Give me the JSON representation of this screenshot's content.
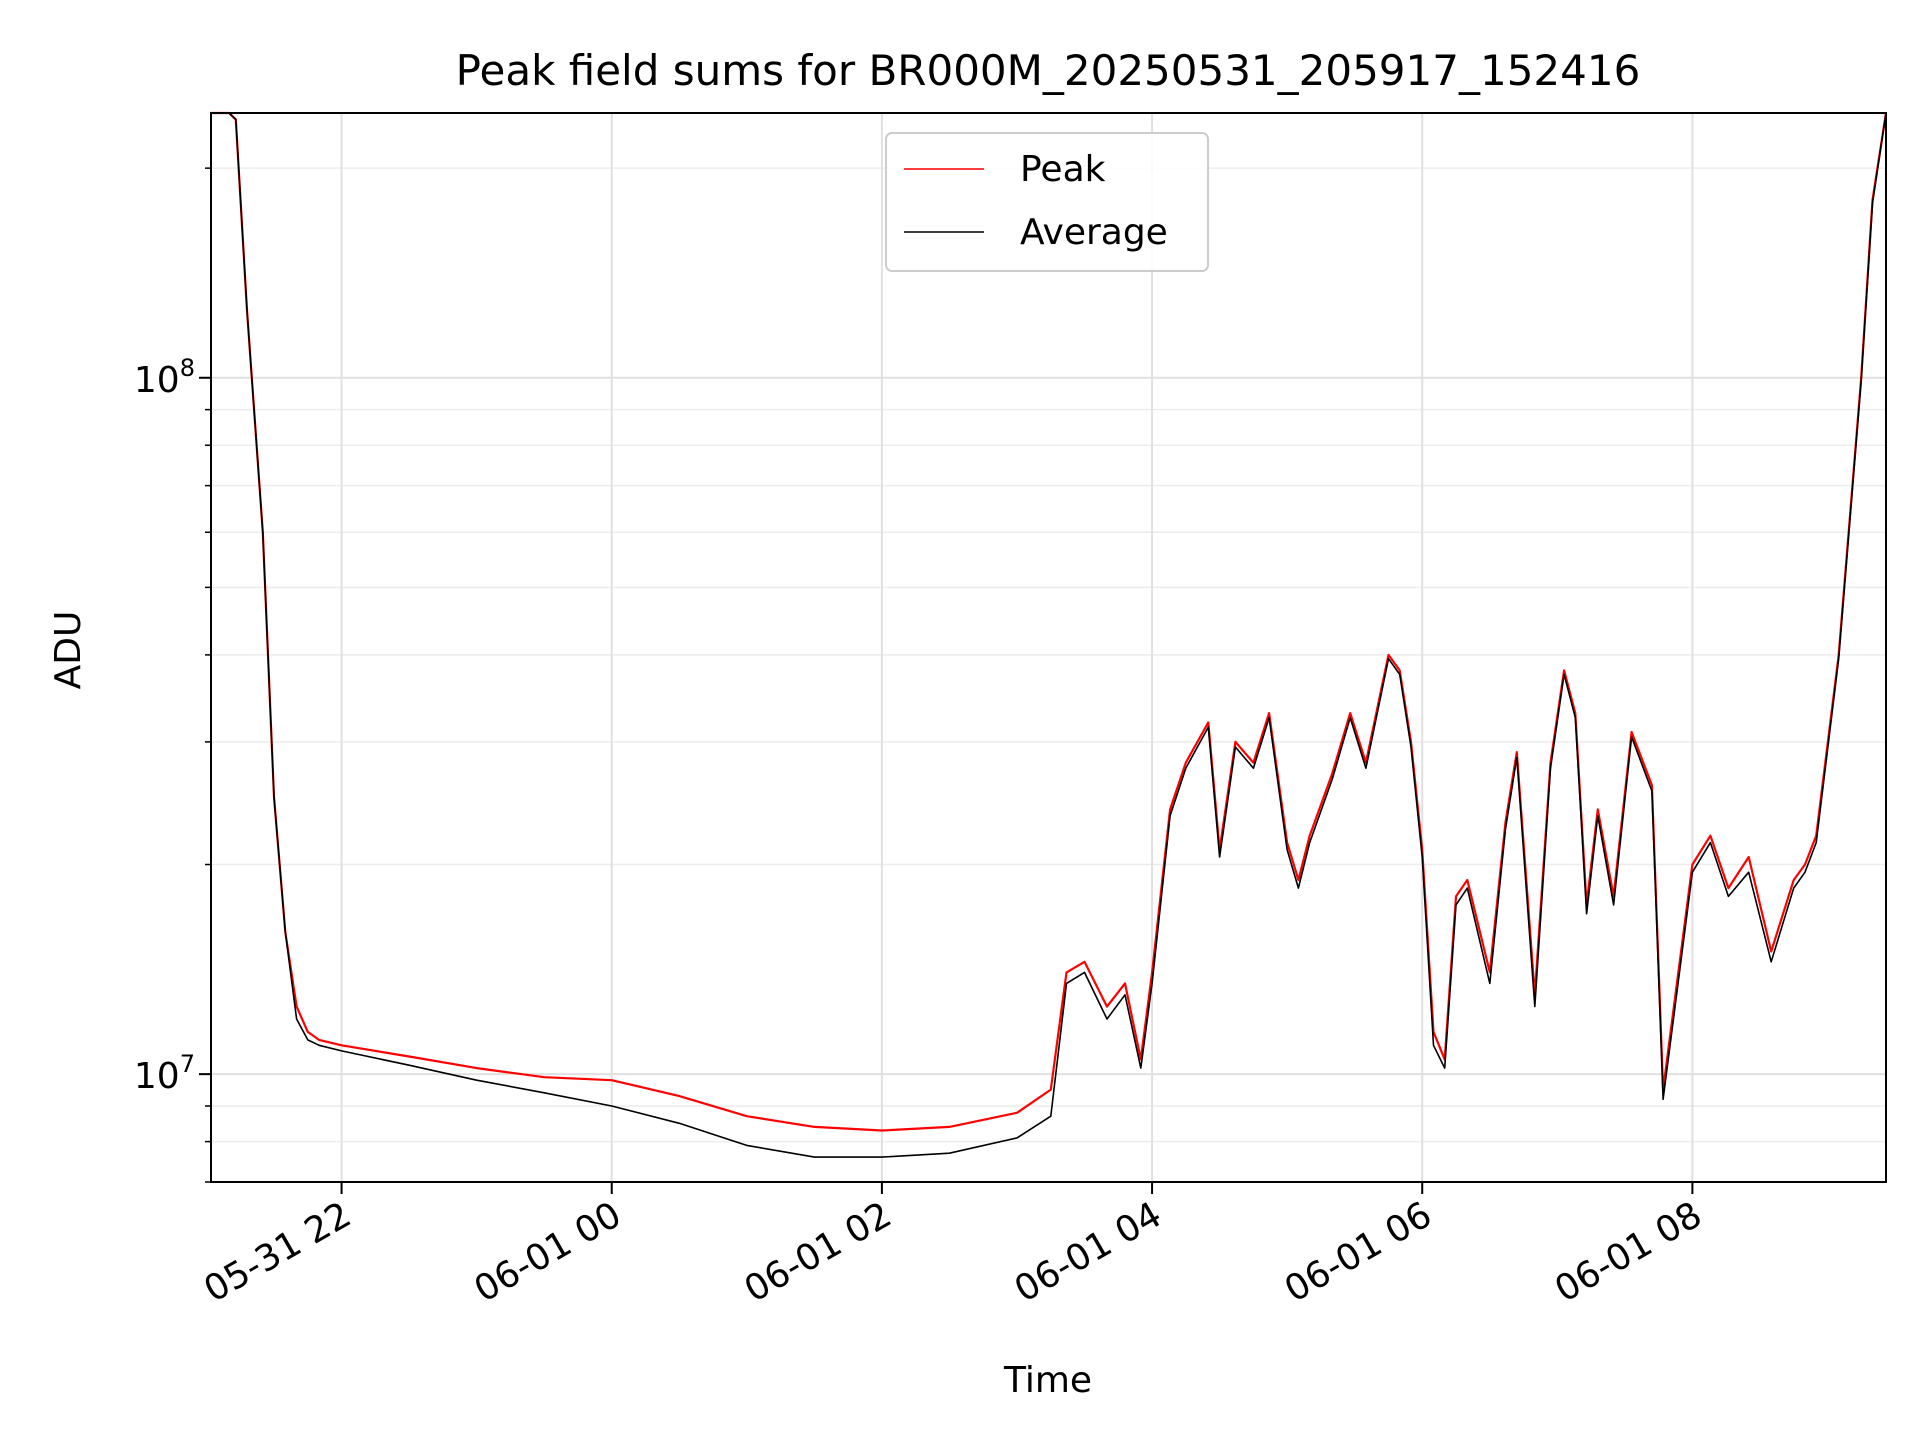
{
  "chart_data": {
    "type": "line",
    "title": "Peak field sums for BR000M_20250531_205917_152416",
    "xlabel": "Time",
    "ylabel": "ADU",
    "y_scale": "log",
    "ylim": [
      7000000,
      240000000
    ],
    "xlim": [
      "2025-05-31 21:02",
      "2025-06-01 09:26"
    ],
    "x_ticks": [
      {
        "value": "2025-05-31 22:00",
        "label": "05-31 22"
      },
      {
        "value": "2025-06-01 00:00",
        "label": "06-01 00"
      },
      {
        "value": "2025-06-01 02:00",
        "label": "06-01 02"
      },
      {
        "value": "2025-06-01 04:00",
        "label": "06-01 04"
      },
      {
        "value": "2025-06-01 06:00",
        "label": "06-01 06"
      },
      {
        "value": "2025-06-01 08:00",
        "label": "06-01 08"
      }
    ],
    "y_ticks": [
      {
        "value": 10000000,
        "base": "10",
        "exp": "7"
      },
      {
        "value": 100000000,
        "base": "10",
        "exp": "8"
      }
    ],
    "grid": true,
    "legend_position": "top-center",
    "series": [
      {
        "name": "Peak",
        "color": "#ff0000",
        "x": [
          "2025-05-31 21:02",
          "2025-05-31 21:10",
          "2025-05-31 21:13",
          "2025-05-31 21:18",
          "2025-05-31 21:25",
          "2025-05-31 21:30",
          "2025-05-31 21:35",
          "2025-05-31 21:40",
          "2025-05-31 21:45",
          "2025-05-31 21:50",
          "2025-05-31 22:00",
          "2025-05-31 22:30",
          "2025-05-31 23:00",
          "2025-05-31 23:30",
          "2025-06-01 00:00",
          "2025-06-01 00:30",
          "2025-06-01 01:00",
          "2025-06-01 01:30",
          "2025-06-01 02:00",
          "2025-06-01 02:30",
          "2025-06-01 03:00",
          "2025-06-01 03:15",
          "2025-06-01 03:22",
          "2025-06-01 03:30",
          "2025-06-01 03:40",
          "2025-06-01 03:48",
          "2025-06-01 03:55",
          "2025-06-01 04:00",
          "2025-06-01 04:08",
          "2025-06-01 04:15",
          "2025-06-01 04:25",
          "2025-06-01 04:30",
          "2025-06-01 04:37",
          "2025-06-01 04:45",
          "2025-06-01 04:52",
          "2025-06-01 05:00",
          "2025-06-01 05:05",
          "2025-06-01 05:10",
          "2025-06-01 05:20",
          "2025-06-01 05:28",
          "2025-06-01 05:35",
          "2025-06-01 05:45",
          "2025-06-01 05:50",
          "2025-06-01 05:55",
          "2025-06-01 06:00",
          "2025-06-01 06:05",
          "2025-06-01 06:10",
          "2025-06-01 06:15",
          "2025-06-01 06:20",
          "2025-06-01 06:30",
          "2025-06-01 06:37",
          "2025-06-01 06:42",
          "2025-06-01 06:50",
          "2025-06-01 06:57",
          "2025-06-01 07:03",
          "2025-06-01 07:08",
          "2025-06-01 07:13",
          "2025-06-01 07:18",
          "2025-06-01 07:25",
          "2025-06-01 07:33",
          "2025-06-01 07:42",
          "2025-06-01 07:47",
          "2025-06-01 08:00",
          "2025-06-01 08:08",
          "2025-06-01 08:16",
          "2025-06-01 08:25",
          "2025-06-01 08:35",
          "2025-06-01 08:45",
          "2025-06-01 08:50",
          "2025-06-01 08:55",
          "2025-06-01 09:05",
          "2025-06-01 09:15",
          "2025-06-01 09:20",
          "2025-06-01 09:26"
        ],
        "y": [
          240000000,
          240000000,
          235000000,
          125000000,
          60000000,
          25000000,
          16000000,
          12500000,
          11500000,
          11200000,
          11000000,
          10600000,
          10200000,
          9900000,
          9800000,
          9300000,
          8700000,
          8400000,
          8300000,
          8400000,
          8800000,
          9500000,
          14000000,
          14500000,
          12500000,
          13500000,
          10500000,
          14000000,
          24000000,
          28000000,
          32000000,
          21000000,
          30000000,
          28000000,
          33000000,
          21500000,
          19000000,
          22000000,
          27000000,
          33000000,
          28000000,
          40000000,
          38000000,
          30000000,
          21000000,
          11500000,
          10500000,
          18000000,
          19000000,
          14000000,
          23000000,
          29000000,
          13000000,
          28000000,
          38000000,
          33000000,
          17500000,
          24000000,
          18000000,
          31000000,
          26000000,
          9500000,
          20000000,
          22000000,
          18500000,
          20500000,
          15000000,
          19000000,
          20000000,
          22000000,
          40000000,
          100000000,
          180000000,
          240000000
        ]
      },
      {
        "name": "Average",
        "color": "#000000",
        "x": [
          "2025-05-31 21:02",
          "2025-05-31 21:10",
          "2025-05-31 21:13",
          "2025-05-31 21:18",
          "2025-05-31 21:25",
          "2025-05-31 21:30",
          "2025-05-31 21:35",
          "2025-05-31 21:40",
          "2025-05-31 21:45",
          "2025-05-31 21:50",
          "2025-05-31 22:00",
          "2025-05-31 22:30",
          "2025-05-31 23:00",
          "2025-05-31 23:30",
          "2025-06-01 00:00",
          "2025-06-01 00:30",
          "2025-06-01 01:00",
          "2025-06-01 01:30",
          "2025-06-01 02:00",
          "2025-06-01 02:30",
          "2025-06-01 03:00",
          "2025-06-01 03:15",
          "2025-06-01 03:22",
          "2025-06-01 03:30",
          "2025-06-01 03:40",
          "2025-06-01 03:48",
          "2025-06-01 03:55",
          "2025-06-01 04:00",
          "2025-06-01 04:08",
          "2025-06-01 04:15",
          "2025-06-01 04:25",
          "2025-06-01 04:30",
          "2025-06-01 04:37",
          "2025-06-01 04:45",
          "2025-06-01 04:52",
          "2025-06-01 05:00",
          "2025-06-01 05:05",
          "2025-06-01 05:10",
          "2025-06-01 05:20",
          "2025-06-01 05:28",
          "2025-06-01 05:35",
          "2025-06-01 05:45",
          "2025-06-01 05:50",
          "2025-06-01 05:55",
          "2025-06-01 06:00",
          "2025-06-01 06:05",
          "2025-06-01 06:10",
          "2025-06-01 06:15",
          "2025-06-01 06:20",
          "2025-06-01 06:30",
          "2025-06-01 06:37",
          "2025-06-01 06:42",
          "2025-06-01 06:50",
          "2025-06-01 06:57",
          "2025-06-01 07:03",
          "2025-06-01 07:08",
          "2025-06-01 07:13",
          "2025-06-01 07:18",
          "2025-06-01 07:25",
          "2025-06-01 07:33",
          "2025-06-01 07:42",
          "2025-06-01 07:47",
          "2025-06-01 08:00",
          "2025-06-01 08:08",
          "2025-06-01 08:16",
          "2025-06-01 08:25",
          "2025-06-01 08:35",
          "2025-06-01 08:45",
          "2025-06-01 08:50",
          "2025-06-01 08:55",
          "2025-06-01 09:05",
          "2025-06-01 09:15",
          "2025-06-01 09:20",
          "2025-06-01 09:26"
        ],
        "y": [
          240000000,
          240000000,
          235000000,
          125000000,
          60000000,
          25000000,
          16000000,
          12000000,
          11200000,
          11000000,
          10800000,
          10300000,
          9800000,
          9400000,
          9000000,
          8500000,
          7900000,
          7600000,
          7600000,
          7700000,
          8100000,
          8700000,
          13500000,
          14000000,
          12000000,
          13000000,
          10200000,
          13500000,
          23500000,
          27500000,
          31500000,
          20500000,
          29500000,
          27500000,
          32500000,
          21000000,
          18500000,
          21500000,
          26500000,
          32500000,
          27500000,
          39500000,
          37500000,
          29500000,
          20500000,
          11000000,
          10200000,
          17500000,
          18500000,
          13500000,
          22500000,
          28500000,
          12500000,
          27500000,
          37500000,
          32500000,
          17000000,
          23500000,
          17500000,
          30500000,
          25500000,
          9200000,
          19500000,
          21500000,
          18000000,
          19500000,
          14500000,
          18500000,
          19500000,
          21500000,
          39500000,
          99000000,
          178000000,
          240000000
        ]
      }
    ],
    "legend": [
      {
        "name": "Peak",
        "color": "#ff0000"
      },
      {
        "name": "Average",
        "color": "#000000"
      }
    ]
  }
}
